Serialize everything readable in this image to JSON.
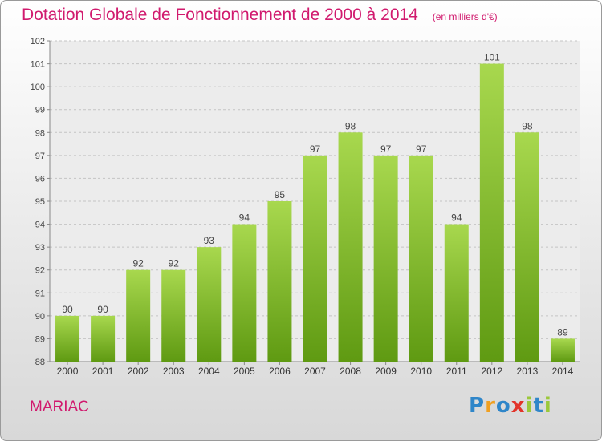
{
  "chart_data": {
    "type": "bar",
    "title": "Dotation Globale de Fonctionnement de 2000 à 2014",
    "subtitle": "(en milliers d'€)",
    "xlabel": "",
    "ylabel": "",
    "categories": [
      "2000",
      "2001",
      "2002",
      "2003",
      "2004",
      "2005",
      "2006",
      "2007",
      "2008",
      "2009",
      "2010",
      "2011",
      "2012",
      "2013",
      "2014"
    ],
    "values": [
      90,
      90,
      92,
      92,
      93,
      94,
      95,
      97,
      98,
      97,
      97,
      94,
      101,
      98,
      89
    ],
    "ylim": [
      88,
      102
    ],
    "yticks": [
      88,
      89,
      90,
      91,
      92,
      93,
      94,
      95,
      96,
      97,
      98,
      99,
      100,
      101,
      102
    ],
    "grid": true
  },
  "commune": "MARIAC",
  "logo": {
    "text": "Proxiti",
    "letters": [
      "P",
      "r",
      "o",
      "x",
      "i",
      "t",
      "i"
    ],
    "colors": [
      "#2f86c9",
      "#f0a021",
      "#2f86c9",
      "#e2342a",
      "#9bc83a",
      "#2f86c9",
      "#9bc83a"
    ]
  },
  "colors": {
    "title": "#d11a6e",
    "bar_top": "#a8d84e",
    "bar_bottom": "#5f9a12",
    "grid": "#c4c4c4"
  }
}
